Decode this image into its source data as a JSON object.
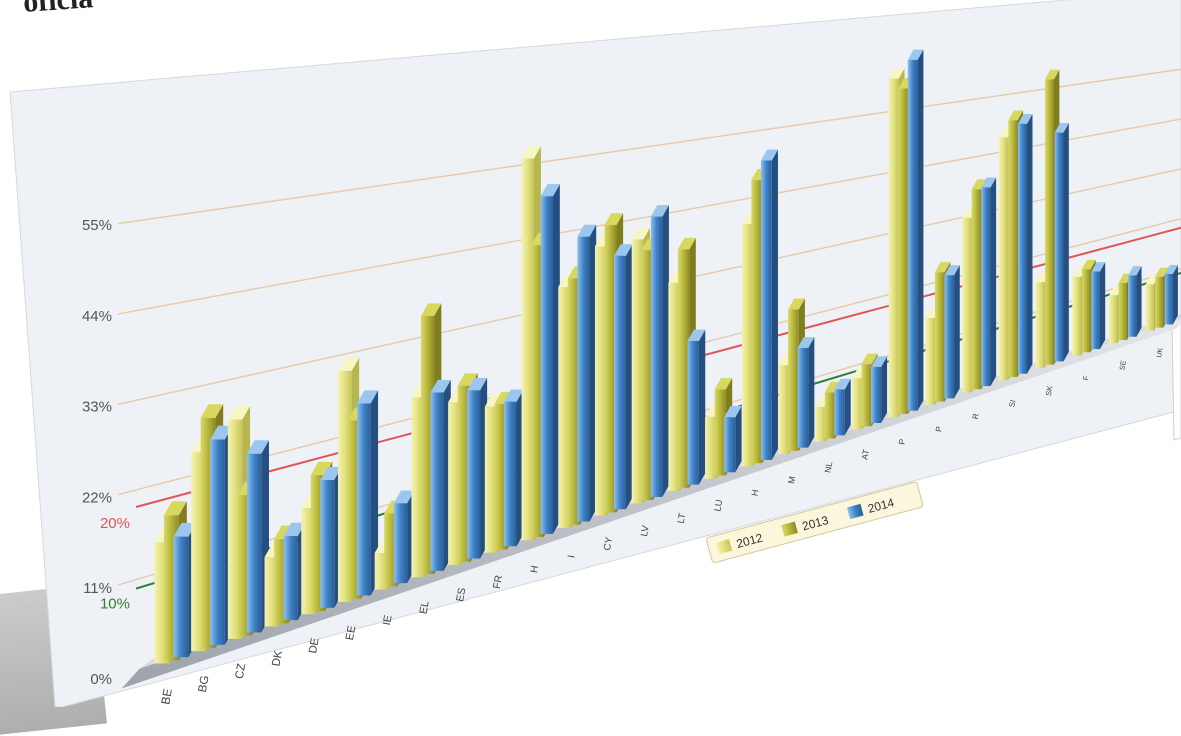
{
  "header_fragment": "oficia",
  "chart_data": {
    "type": "bar",
    "categories": [
      "BE",
      "BG",
      "CZ",
      "DK",
      "DE",
      "EE",
      "IE",
      "EL",
      "ES",
      "FR",
      "H",
      "I",
      "CY",
      "LV",
      "LT",
      "LU",
      "H",
      "M",
      "NL",
      "AT",
      "P",
      "P",
      "R",
      "SI",
      "SK",
      "F",
      "SE",
      "UK"
    ],
    "series": [
      {
        "name": "2012",
        "values": [
          15,
          25,
          28,
          9,
          14,
          31,
          5,
          25,
          23,
          21,
          56,
          36,
          41,
          41,
          33,
          10,
          40,
          15,
          6,
          9,
          61,
          16,
          33,
          47,
          17,
          16,
          10,
          10
        ]
      },
      {
        "name": "2013",
        "values": [
          18,
          29,
          18,
          11,
          18,
          24,
          10,
          36,
          25,
          21,
          43,
          37,
          44,
          39,
          38,
          14,
          47,
          24,
          8,
          11,
          59,
          24,
          38,
          50,
          57,
          17,
          12,
          11
        ]
      },
      {
        "name": "2014",
        "values": [
          15,
          26,
          23,
          11,
          17,
          26,
          11,
          25,
          24,
          21,
          50,
          43,
          39,
          44,
          23,
          9,
          50,
          17,
          8,
          10,
          64,
          23,
          38,
          49,
          46,
          16,
          13,
          11
        ]
      }
    ],
    "yticks": [
      "0%",
      "11%",
      "22%",
      "33%",
      "44%",
      "55%"
    ],
    "ymax": 66,
    "reference_lines": [
      {
        "label": "20%",
        "value": 20,
        "color": "#e05555"
      },
      {
        "label": "10%",
        "value": 10,
        "color": "#2e7d32"
      }
    ],
    "legend": [
      "2012",
      "2013",
      "2014"
    ],
    "legend_position": "bottom-center",
    "colors": {
      "y2012": "#e6e48a",
      "y2013": "#b8b83a",
      "y2014": "#3f82c8",
      "grid": "#e8c9a8"
    }
  }
}
